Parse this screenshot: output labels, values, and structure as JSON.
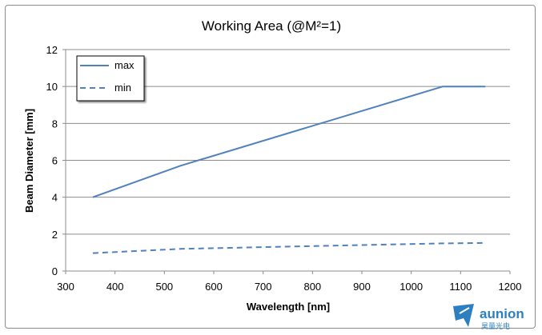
{
  "chart_data": {
    "type": "line",
    "title": "Working Area (@M²=1)",
    "xlabel": "Wavelength [nm]",
    "ylabel": "Beam Diameter [mm]",
    "xlim": [
      300,
      1200
    ],
    "ylim": [
      0,
      12
    ],
    "xticks": [
      300,
      400,
      500,
      600,
      700,
      800,
      900,
      1000,
      1100,
      1200
    ],
    "yticks": [
      0,
      2,
      4,
      6,
      8,
      10,
      12
    ],
    "grid": "horizontal",
    "legend_position": "top-left",
    "series": [
      {
        "name": "max",
        "style": "solid",
        "color": "#4f81bd",
        "points": [
          [
            355,
            4.0
          ],
          [
            532,
            5.7
          ],
          [
            1064,
            10.0
          ],
          [
            1150,
            10.0
          ]
        ]
      },
      {
        "name": "min",
        "style": "dashed",
        "color": "#4f81bd",
        "points": [
          [
            355,
            0.97
          ],
          [
            532,
            1.2
          ],
          [
            1064,
            1.5
          ],
          [
            1150,
            1.52
          ]
        ]
      }
    ]
  },
  "logo": {
    "name": "aunion",
    "subtitle": "昊量光电",
    "color": "#2d7fc0"
  }
}
